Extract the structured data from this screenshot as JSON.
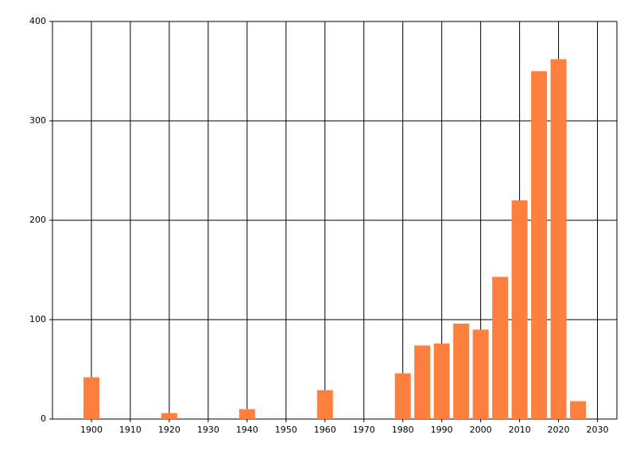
{
  "chart_data": {
    "type": "bar",
    "x": [
      1900,
      1920,
      1940,
      1960,
      1980,
      1985,
      1990,
      1995,
      2000,
      2005,
      2010,
      2015,
      2020,
      2025
    ],
    "values": [
      42,
      6,
      10,
      29,
      46,
      74,
      76,
      96,
      90,
      143,
      220,
      350,
      362,
      18
    ],
    "color": "#ff7f3f",
    "xlim": [
      1890,
      2035
    ],
    "xticks": [
      1900,
      1910,
      1920,
      1930,
      1940,
      1950,
      1960,
      1970,
      1980,
      1990,
      2000,
      2010,
      2020,
      2030
    ],
    "ylim": [
      0,
      400
    ],
    "yticks": [
      0,
      100,
      200,
      300,
      400
    ],
    "grid": true
  }
}
